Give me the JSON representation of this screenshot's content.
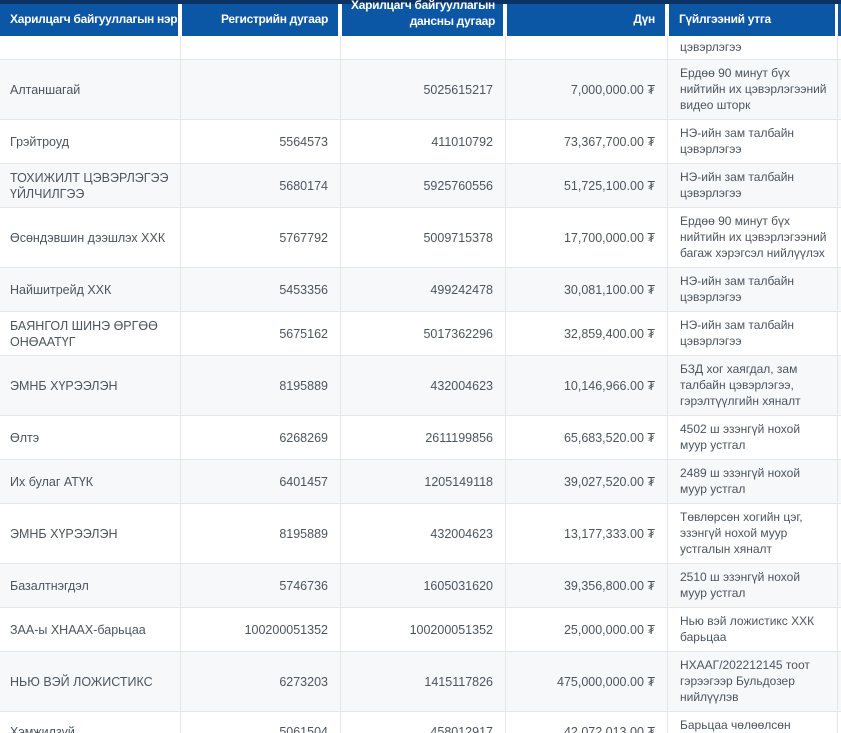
{
  "colors": {
    "header_blue": "#0b57a6",
    "top_strip_navy": "#0c3263",
    "row_stripe": "#f7f8f9",
    "border": "#e4e7ea",
    "text": "#4b5560",
    "header_text": "#ffffff"
  },
  "table": {
    "columns": {
      "org_name": "Харилцагч байгууллагын нэр",
      "registry": "Регистрийн дугаар",
      "account_full": "Харилцагч байгууллагын дансны дугаар",
      "account_line1": "Харилцагч байгууллагын",
      "account_line2": "дансны дугаар",
      "amount": "Дүн",
      "description": "Гүйлгээний утга"
    },
    "currency_symbol": "₮",
    "partial_row": {
      "description": "цэвэрлэгээ"
    },
    "rows": [
      {
        "name": "Алтаншагай",
        "registry": "",
        "account": "5025615217",
        "amount": "7,000,000.00 ₮",
        "description": "Ердөө 90 минут бүх нийтийн их цэвэрлэгээний видео шторк"
      },
      {
        "name": "Грэйтроуд",
        "registry": "5564573",
        "account": "411010792",
        "amount": "73,367,700.00 ₮",
        "description": "НЭ-ийн зам талбайн цэвэрлэгээ"
      },
      {
        "name": "ТОХИЖИЛТ ЦЭВЭРЛЭГЭЭ ҮЙЛЧИЛГЭЭ",
        "registry": "5680174",
        "account": "5925760556",
        "amount": "51,725,100.00 ₮",
        "description": "НЭ-ийн зам талбайн цэвэрлэгээ"
      },
      {
        "name": "Өсөндэвшин дээшлэх ХХК",
        "registry": "5767792",
        "account": "5009715378",
        "amount": "17,700,000.00 ₮",
        "description": "Ердөө 90 минут бүх нийтийн их цэвэрлэгээний багаж хэрэгсэл нийлүүлэх"
      },
      {
        "name": "Найшитрейд ХХК",
        "registry": "5453356",
        "account": "499242478",
        "amount": "30,081,100.00 ₮",
        "description": "НЭ-ийн зам талбайн цэвэрлэгээ"
      },
      {
        "name": "БАЯНГОЛ ШИНЭ ӨРГӨӨ ОНӨААТҮГ",
        "registry": "5675162",
        "account": "5017362296",
        "amount": "32,859,400.00 ₮",
        "description": "НЭ-ийн зам талбайн цэвэрлэгээ"
      },
      {
        "name": "ЭМНБ ХҮРЭЭЛЭН",
        "registry": "8195889",
        "account": "432004623",
        "amount": "10,146,966.00 ₮",
        "description": "БЗД хог хаягдал, зам талбайн цэвэрлэгээ, гэрэлтүүлгийн хяналт"
      },
      {
        "name": "Өлтэ",
        "registry": "6268269",
        "account": "2611199856",
        "amount": "65,683,520.00 ₮",
        "description": "4502 ш эзэнгүй нохой муур устгал"
      },
      {
        "name": "Их булаг АТҮК",
        "registry": "6401457",
        "account": "1205149118",
        "amount": "39,027,520.00 ₮",
        "description": "2489 ш эзэнгүй нохой муур устгал"
      },
      {
        "name": "ЭМНБ ХҮРЭЭЛЭН",
        "registry": "8195889",
        "account": "432004623",
        "amount": "13,177,333.00 ₮",
        "description": "Төвлөрсөн хогийн цэг, эзэнгүй нохой муур устгалын хяналт"
      },
      {
        "name": "Базалтнэгдэл",
        "registry": "5746736",
        "account": "1605031620",
        "amount": "39,356,800.00 ₮",
        "description": "2510 ш эзэнгүй нохой муур устгал"
      },
      {
        "name": "ЗАА-ы ХНААХ-барьцаа",
        "registry": "100200051352",
        "account": "100200051352",
        "amount": "25,000,000.00 ₮",
        "description": "Нью вэй ложистикс ХХК барьцаа"
      },
      {
        "name": "НЬЮ ВЭЙ ЛОЖИСТИКС",
        "registry": "6273203",
        "account": "1415117826",
        "amount": "475,000,000.00 ₮",
        "description": "НХААГ/202212145 тоот гэрээгээр Бульдозер нийлүүлэв"
      },
      {
        "name": "Хэмжилзүй",
        "registry": "5061504",
        "account": "458012917",
        "amount": "42,072,013.00 ₮",
        "description": "Барьцаа чөлөөлсөн"
      }
    ]
  }
}
